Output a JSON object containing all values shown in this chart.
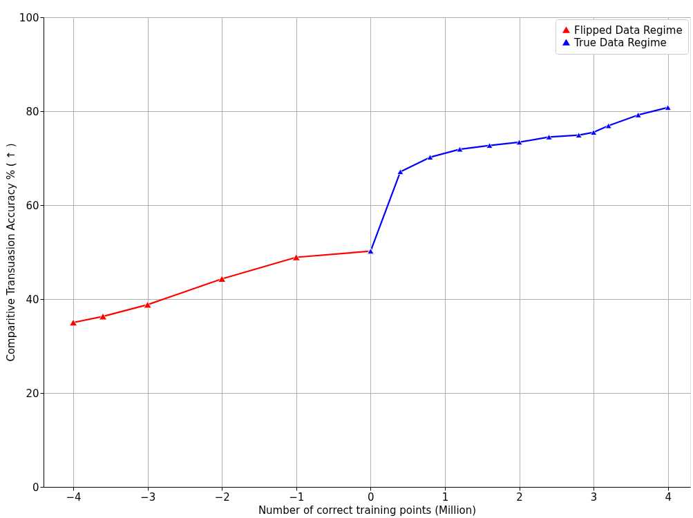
{
  "chart_data": {
    "type": "line",
    "xlabel": "Number of correct training points (Million)",
    "ylabel": "Comparitive Transuasion Accuracy % ( ↑ )",
    "xlim": [
      -4.4,
      4.3
    ],
    "ylim": [
      0,
      100
    ],
    "xticks": [
      {
        "value": -4,
        "label": "−4"
      },
      {
        "value": -3,
        "label": "−3"
      },
      {
        "value": -2,
        "label": "−2"
      },
      {
        "value": -1,
        "label": "−1"
      },
      0,
      1,
      2,
      3,
      4
    ],
    "yticks": [
      0,
      20,
      40,
      60,
      80,
      100
    ],
    "grid": true,
    "legend": "top right",
    "marker": "triangle",
    "line_style": "solid",
    "series": [
      {
        "name": "Flipped Data Regime",
        "color": "#ff0000",
        "x": [
          -4,
          -3.6,
          -3,
          -2,
          -1,
          0
        ],
        "values": [
          35.0,
          36.3,
          38.8,
          44.3,
          48.9,
          50.2
        ]
      },
      {
        "name": "True Data Regime",
        "color": "#0000ff",
        "x": [
          0,
          0.4,
          0.8,
          1.2,
          1.6,
          2,
          2.4,
          2.8,
          3.0,
          3.2,
          3.6,
          4
        ],
        "values": [
          50.2,
          67.1,
          70.2,
          71.9,
          72.7,
          73.4,
          74.5,
          74.9,
          75.5,
          76.9,
          79.2,
          80.8
        ]
      }
    ]
  }
}
